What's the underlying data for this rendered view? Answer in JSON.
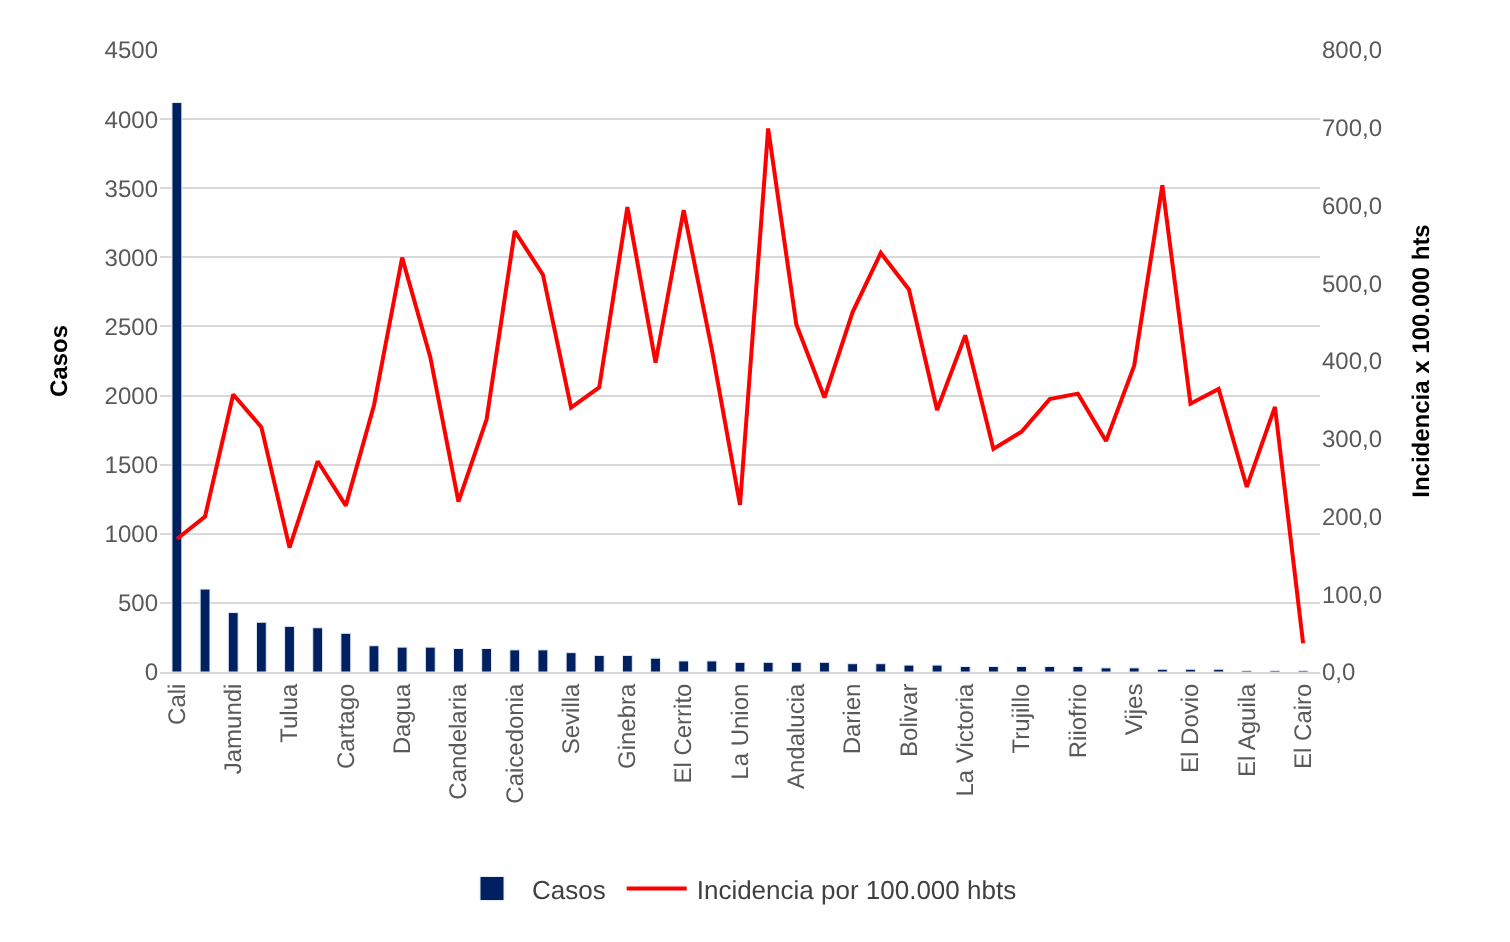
{
  "chart_data": {
    "type": "bar",
    "categories": [
      "Cali",
      null,
      "Jamundi",
      null,
      "Tulua",
      null,
      "Cartago",
      null,
      "Dagua",
      null,
      "Candelaria",
      null,
      "Caicedonia",
      null,
      "Sevilla",
      null,
      "Ginebra",
      null,
      "El Cerrito",
      null,
      "La Union",
      null,
      "Andalucia",
      null,
      "Darien",
      null,
      "Bolivar",
      null,
      "La Victoria",
      null,
      "Trujillo",
      null,
      "Riiofrio",
      null,
      "Vijes",
      null,
      "El Dovio",
      null,
      "El Aguila",
      null,
      "El Cairo"
    ],
    "series": [
      {
        "name": "Casos",
        "color": "#002060",
        "values": [
          4120,
          600,
          430,
          360,
          330,
          320,
          280,
          190,
          180,
          180,
          170,
          170,
          160,
          160,
          140,
          120,
          120,
          100,
          80,
          80,
          70,
          70,
          70,
          70,
          60,
          60,
          50,
          50,
          40,
          40,
          40,
          40,
          40,
          30,
          30,
          20,
          20,
          20,
          10,
          10,
          10
        ]
      },
      {
        "name": "Incidencia por 100.000 hbts",
        "type": "line",
        "axis": "y2",
        "color": "#ff0000",
        "values": [
          171,
          200,
          357,
          315,
          160,
          271,
          214,
          343,
          533,
          405,
          219,
          325,
          567,
          511,
          340,
          366,
          598,
          398,
          594,
          415,
          215,
          699,
          447,
          353,
          463,
          539,
          492,
          337,
          433,
          287,
          309,
          351,
          358,
          297,
          394,
          626,
          345,
          364,
          238,
          341,
          37
        ]
      }
    ],
    "ylabel": "Casos",
    "y2label": "Incidencia x 100.000 hts",
    "ylim": [
      0,
      4500
    ],
    "yticks": [
      0,
      500,
      1000,
      1500,
      2000,
      2500,
      3000,
      3500,
      4000,
      4500
    ],
    "y2lim": [
      0,
      800
    ],
    "y2ticks": [
      {
        "value": 0,
        "label": "0,0"
      },
      {
        "value": 100,
        "label": "100,0"
      },
      {
        "value": 200,
        "label": "200,0"
      },
      {
        "value": 300,
        "label": "300,0"
      },
      {
        "value": 400,
        "label": "400,0"
      },
      {
        "value": 500,
        "label": "500,0"
      },
      {
        "value": 600,
        "label": "600,0"
      },
      {
        "value": 700,
        "label": "700,0"
      },
      {
        "value": 800,
        "label": "800,0"
      }
    ],
    "grid": "y",
    "legend": "bottom",
    "marker": "none",
    "line_style": "solid"
  }
}
